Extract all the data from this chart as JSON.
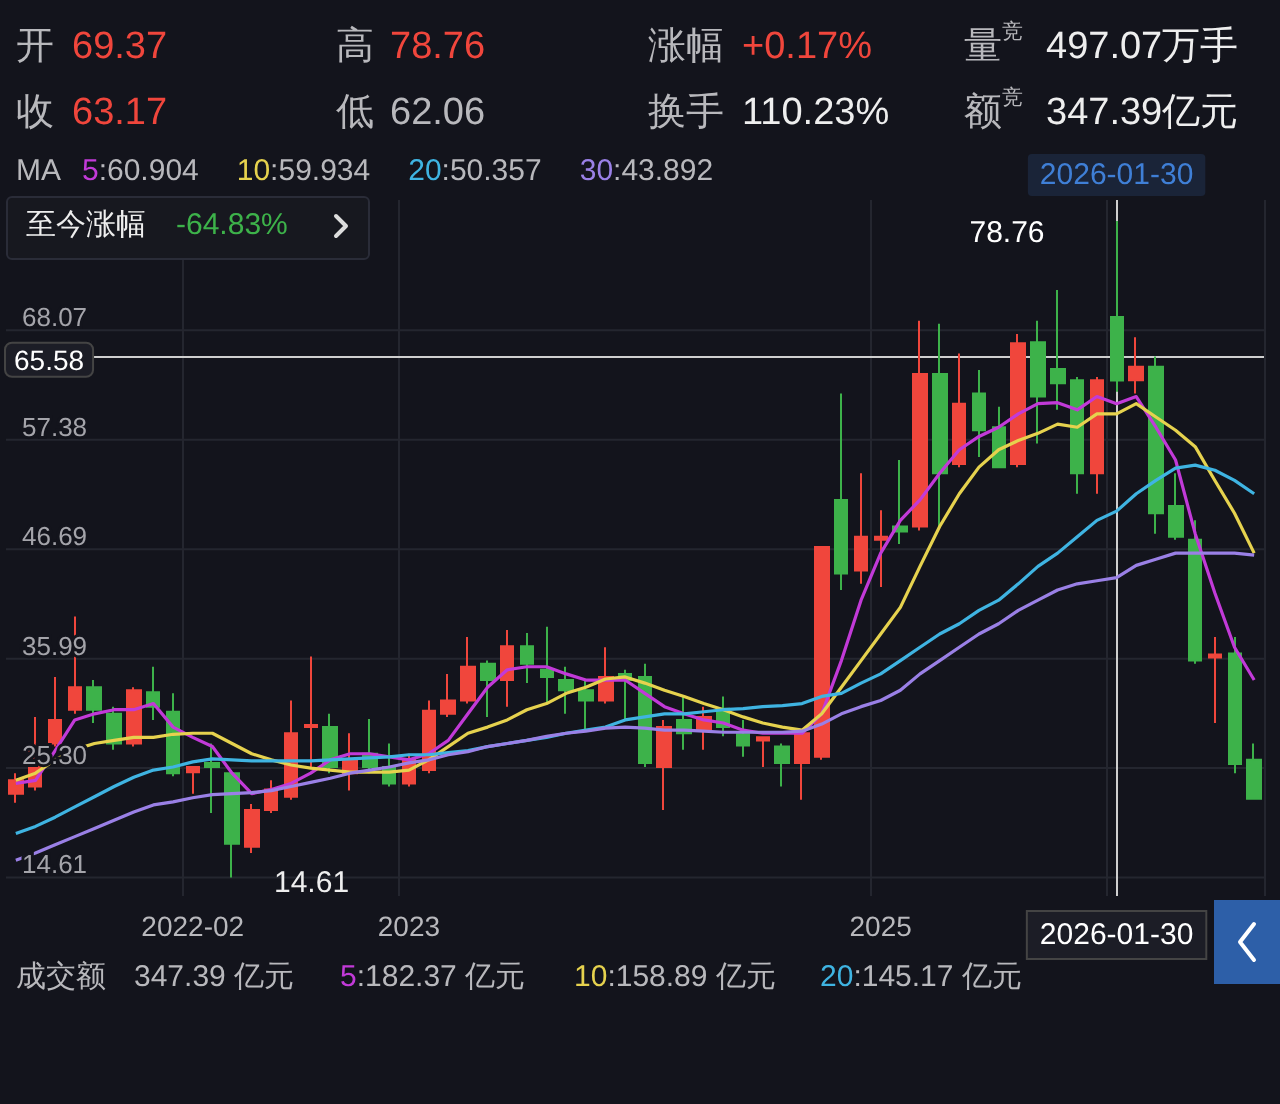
{
  "chart_data": {
    "type": "candlestick",
    "categories": [
      null,
      null,
      null,
      null,
      null,
      null,
      null,
      null,
      null,
      "2022-02",
      null,
      null,
      null,
      null,
      null,
      null,
      null,
      null,
      null,
      null,
      "2023",
      null,
      null,
      null,
      null,
      null,
      null,
      null,
      null,
      null,
      null,
      null,
      null,
      null,
      null,
      null,
      null,
      null,
      null,
      null,
      null,
      null,
      null,
      null,
      "2025",
      null,
      null,
      null,
      null,
      null,
      null,
      null,
      null,
      null,
      null,
      null,
      "2026-01-30",
      null,
      null,
      null,
      null,
      null,
      null,
      null
    ],
    "ohlc": [
      [
        22.8,
        24.8,
        21.9,
        24.1
      ],
      [
        23.5,
        30.3,
        23.1,
        27.4
      ],
      [
        27.7,
        34.2,
        27.4,
        30.0
      ],
      [
        31.0,
        40.1,
        30.6,
        33.2
      ],
      [
        33.2,
        33.9,
        29.7,
        31.0
      ],
      [
        30.6,
        31.3,
        27.1,
        27.7
      ],
      [
        27.7,
        33.2,
        27.4,
        32.9
      ],
      [
        32.7,
        35.2,
        30.0,
        31.3
      ],
      [
        30.8,
        32.6,
        24.5,
        24.8
      ],
      [
        24.9,
        25.4,
        22.8,
        25.4
      ],
      [
        25.8,
        27.7,
        20.9,
        25.4
      ],
      [
        24.8,
        25.1,
        14.61,
        17.9
      ],
      [
        17.6,
        21.8,
        17.0,
        21.2
      ],
      [
        21.2,
        24.1,
        20.9,
        23.2
      ],
      [
        22.5,
        31.9,
        22.2,
        28.7
      ],
      [
        29.3,
        36.2,
        25.4,
        29.5
      ],
      [
        29.3,
        30.6,
        24.8,
        25.4
      ],
      [
        24.8,
        28.7,
        23.1,
        26.1
      ],
      [
        26.7,
        30.1,
        24.8,
        25.4
      ],
      [
        25.4,
        27.7,
        23.5,
        23.8
      ],
      [
        23.8,
        26.7,
        23.5,
        26.1
      ],
      [
        25.1,
        31.9,
        24.8,
        30.9
      ],
      [
        30.6,
        34.5,
        30.3,
        31.9
      ],
      [
        31.9,
        38.1,
        31.6,
        35.2
      ],
      [
        35.5,
        35.8,
        30.3,
        33.9
      ],
      [
        33.9,
        38.8,
        31.3,
        37.2
      ],
      [
        37.2,
        38.5,
        33.6,
        35.5
      ],
      [
        34.9,
        39.1,
        31.6,
        34.2
      ],
      [
        33.9,
        35.2,
        30.6,
        32.9
      ],
      [
        32.9,
        33.9,
        29.0,
        31.9
      ],
      [
        31.9,
        37.1,
        31.6,
        34.2
      ],
      [
        34.5,
        34.9,
        30.0,
        33.9
      ],
      [
        34.2,
        35.5,
        25.4,
        25.8
      ],
      [
        25.4,
        30.0,
        21.2,
        29.3
      ],
      [
        30.0,
        32.3,
        27.1,
        28.7
      ],
      [
        29.0,
        31.3,
        27.1,
        30.3
      ],
      [
        31.1,
        32.3,
        28.4,
        29.3
      ],
      [
        28.6,
        30.0,
        26.4,
        27.5
      ],
      [
        28.0,
        28.3,
        25.4,
        28.3
      ],
      [
        27.4,
        27.7,
        23.5,
        25.8
      ],
      [
        25.8,
        29.0,
        22.2,
        28.7
      ],
      [
        26.4,
        46.9,
        26.1,
        46.9
      ],
      [
        51.5,
        61.9,
        42.7,
        44.3
      ],
      [
        44.6,
        54.1,
        43.3,
        47.9
      ],
      [
        47.6,
        50.5,
        43.0,
        47.9
      ],
      [
        48.9,
        55.4,
        47.2,
        48.4
      ],
      [
        48.9,
        69.0,
        48.5,
        63.8
      ],
      [
        63.8,
        68.7,
        48.9,
        54.1
      ],
      [
        55.0,
        65.8,
        54.7,
        60.9
      ],
      [
        61.9,
        64.2,
        55.7,
        58.3
      ],
      [
        58.6,
        60.6,
        54.7,
        54.7
      ],
      [
        55.0,
        67.7,
        54.7,
        66.8
      ],
      [
        66.9,
        69.0,
        57.0,
        61.6
      ],
      [
        64.3,
        72.0,
        60.3,
        62.9
      ],
      [
        63.2,
        63.5,
        52.1,
        54.1
      ],
      [
        54.1,
        63.5,
        52.1,
        63.2
      ],
      [
        69.37,
        78.76,
        62.06,
        63.17
      ],
      [
        63.2,
        67.4,
        61.9,
        64.5
      ],
      [
        64.5,
        65.5,
        48.2,
        50.2
      ],
      [
        50.9,
        54.1,
        47.6,
        47.9
      ],
      [
        47.6,
        49.5,
        35.5,
        35.8
      ],
      [
        36.1,
        38.1,
        29.7,
        36.4
      ],
      [
        36.5,
        38.1,
        24.8,
        25.7
      ],
      [
        26.1,
        27.7,
        22.3,
        22.3
      ]
    ],
    "colors": [
      "#f0463c",
      "#f0463c",
      "#f0463c",
      "#f0463c",
      "#3db24a",
      "#3db24a",
      "#f0463c",
      "#3db24a",
      "#3db24a",
      "#f0463c",
      "#3db24a",
      "#3db24a",
      "#f0463c",
      "#f0463c",
      "#f0463c",
      "#f0463c",
      "#3db24a",
      "#f0463c",
      "#3db24a",
      "#3db24a",
      "#f0463c",
      "#f0463c",
      "#f0463c",
      "#f0463c",
      "#3db24a",
      "#f0463c",
      "#3db24a",
      "#3db24a",
      "#3db24a",
      "#3db24a",
      "#f0463c",
      "#3db24a",
      "#3db24a",
      "#f0463c",
      "#3db24a",
      "#f0463c",
      "#3db24a",
      "#3db24a",
      "#f0463c",
      "#3db24a",
      "#f0463c",
      "#f0463c",
      "#3db24a",
      "#f0463c",
      "#f0463c",
      "#3db24a",
      "#f0463c",
      "#3db24a",
      "#f0463c",
      "#3db24a",
      "#3db24a",
      "#f0463c",
      "#3db24a",
      "#3db24a",
      "#3db24a",
      "#f0463c",
      "#3db24a",
      "#f0463c",
      "#3db24a",
      "#3db24a",
      "#3db24a",
      "#f0463c",
      "#3db24a",
      "#3db24a"
    ],
    "series": [
      {
        "name": "5:60.904",
        "type": "line",
        "color": "#c23ad8",
        "values": [
          23.8,
          24.1,
          27.0,
          30.0,
          30.6,
          31.0,
          31.0,
          31.6,
          29.3,
          28.3,
          27.4,
          24.8,
          22.8,
          23.2,
          23.8,
          24.8,
          26.1,
          26.7,
          26.7,
          26.4,
          26.1,
          26.7,
          28.0,
          30.6,
          33.2,
          34.9,
          35.2,
          35.2,
          34.5,
          33.9,
          33.9,
          33.9,
          32.6,
          31.3,
          30.6,
          30.0,
          29.7,
          29.0,
          28.7,
          28.7,
          28.7,
          30.6,
          35.8,
          41.7,
          46.3,
          49.5,
          51.5,
          54.1,
          56.4,
          57.7,
          58.6,
          59.9,
          60.9,
          61.0,
          60.3,
          61.6,
          60.9,
          61.6,
          58.6,
          55.4,
          48.2,
          42.4,
          37.1,
          33.9
        ]
      },
      {
        "name": "10:59.934",
        "type": "line",
        "color": "#e6d24e",
        "values": [
          24.1,
          24.8,
          26.1,
          27.1,
          27.7,
          28.0,
          28.3,
          28.3,
          28.6,
          28.7,
          28.7,
          27.7,
          26.7,
          26.1,
          25.6,
          25.3,
          25.1,
          24.9,
          24.9,
          24.9,
          25.1,
          26.1,
          27.4,
          28.7,
          29.3,
          30.0,
          31.0,
          31.6,
          32.6,
          33.2,
          34.0,
          34.2,
          33.6,
          32.9,
          32.3,
          31.6,
          31.0,
          30.3,
          29.7,
          29.3,
          29.0,
          30.6,
          33.2,
          35.8,
          38.4,
          41.0,
          45.0,
          48.9,
          52.1,
          54.7,
          56.4,
          57.3,
          58.0,
          58.9,
          58.6,
          59.9,
          59.9,
          60.9,
          59.6,
          58.3,
          56.7,
          53.4,
          50.2,
          46.3
        ]
      },
      {
        "name": "20:50.357",
        "type": "line",
        "color": "#3fb4e2",
        "values": [
          18.9,
          19.6,
          20.5,
          21.5,
          22.5,
          23.5,
          24.4,
          25.1,
          25.4,
          25.9,
          26.2,
          26.1,
          26.0,
          26.0,
          26.0,
          26.0,
          26.1,
          26.2,
          26.3,
          26.4,
          26.6,
          26.6,
          26.8,
          27.0,
          27.4,
          27.7,
          28.0,
          28.3,
          28.7,
          29.0,
          29.3,
          30.0,
          30.3,
          30.6,
          30.6,
          30.8,
          31.0,
          31.1,
          31.3,
          31.4,
          31.6,
          32.3,
          32.6,
          33.6,
          34.5,
          35.8,
          37.1,
          38.4,
          39.4,
          40.7,
          41.7,
          43.3,
          45.0,
          46.3,
          47.9,
          49.5,
          50.4,
          52.1,
          53.4,
          54.6,
          54.9,
          54.4,
          53.4,
          52.1
        ]
      },
      {
        "name": "30:43.892",
        "type": "line",
        "color": "#9a80e6",
        "values": [
          16.3,
          17.0,
          17.8,
          18.6,
          19.4,
          20.2,
          21.0,
          21.7,
          22.0,
          22.4,
          22.7,
          22.8,
          22.9,
          23.1,
          23.5,
          23.9,
          24.3,
          24.8,
          25.1,
          25.4,
          25.8,
          26.1,
          26.6,
          26.9,
          27.4,
          27.7,
          28.0,
          28.4,
          28.7,
          28.9,
          29.2,
          29.3,
          29.2,
          29.0,
          29.0,
          28.9,
          28.8,
          28.8,
          28.8,
          28.8,
          28.9,
          29.6,
          30.6,
          31.3,
          31.9,
          32.9,
          34.5,
          35.8,
          37.1,
          38.4,
          39.4,
          40.7,
          41.7,
          42.7,
          43.3,
          43.6,
          43.9,
          45.1,
          45.7,
          46.3,
          46.3,
          46.3,
          46.3,
          46.1
        ]
      }
    ],
    "ylim": [
      12.8,
      80.8
    ],
    "yticks": [
      14.61,
      {
        "value": 25.3,
        "label": "25.30"
      },
      35.99,
      46.69,
      57.38,
      68.07
    ],
    "grid": true,
    "legend": "top left",
    "ref_lines": [
      {
        "axis": "y",
        "value": 65.58,
        "label": "65.58"
      },
      {
        "axis": "x",
        "value": "2026-01-30",
        "label": "2026-01-30"
      }
    ],
    "annotations": [
      "开",
      "69.37",
      "高",
      "78.76",
      "涨幅",
      "+0.17%",
      "量$^{竞}$",
      "497.07万手",
      "收",
      "63.17",
      "低",
      "62.06",
      "换手",
      "110.23%",
      "额$^{竞}$",
      "347.39亿元",
      "MA",
      "至今涨幅",
      "-64.83%",
      "成交额",
      "347.39 亿元",
      "5:182.37 亿元",
      "10:158.89 亿元",
      "20:145.17 亿元",
      {
        "text": "78.76",
        "x": "2026-01-30",
        "y": 78.76
      },
      "14.61"
    ]
  }
}
